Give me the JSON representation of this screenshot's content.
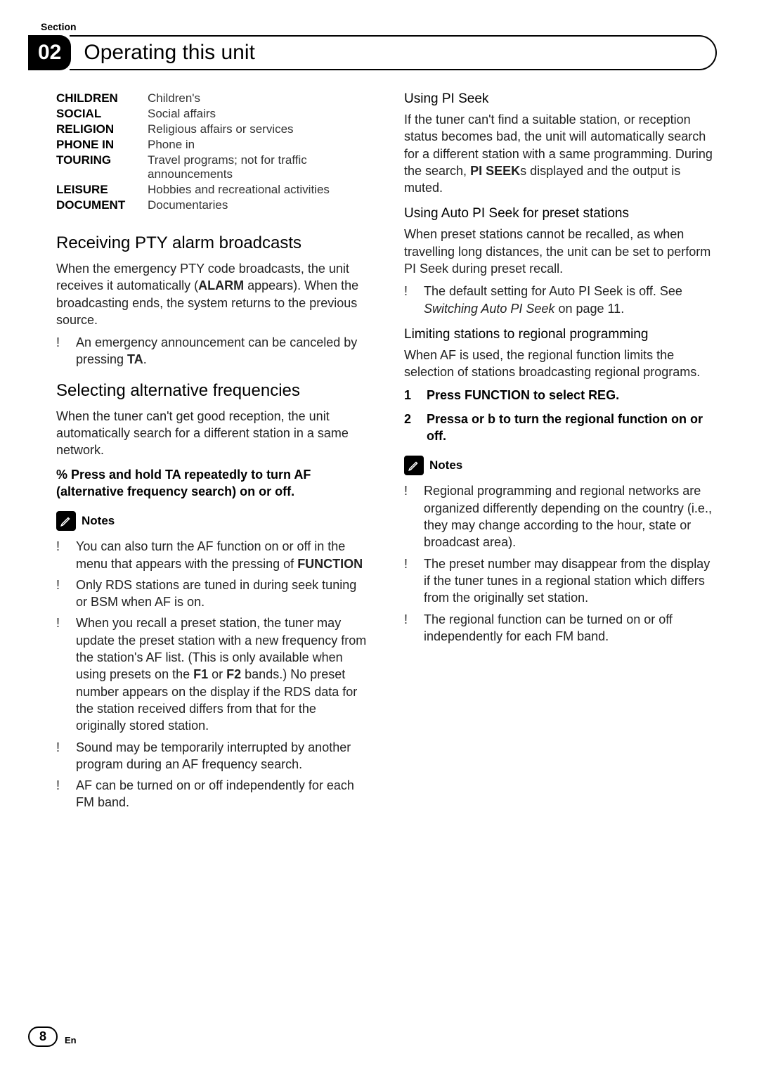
{
  "header": {
    "section_label": "Section",
    "section_number": "02",
    "title": "Operating this unit"
  },
  "pty": [
    {
      "key": "CHILDREN",
      "val": "Children's"
    },
    {
      "key": "SOCIAL",
      "val": "Social affairs"
    },
    {
      "key": "RELIGION",
      "val": "Religious affairs or services"
    },
    {
      "key": "PHONE IN",
      "val": "Phone in"
    },
    {
      "key": "TOURING",
      "val": "Travel programs; not for traffic announcements"
    },
    {
      "key": "LEISURE",
      "val": "Hobbies and recreational activities"
    },
    {
      "key": "DOCUMENT",
      "val": "Documentaries"
    }
  ],
  "left": {
    "h2_pty_alarm": "Receiving PTY alarm broadcasts",
    "pty_alarm_body_pre": "When the emergency PTY code broadcasts, the unit receives it automatically (",
    "pty_alarm_bold": "ALARM",
    "pty_alarm_body_post": " appears). When the broadcasting ends, the system returns to the previous source.",
    "pty_alarm_bullet_pre": "An emergency announcement can be canceled by pressing ",
    "pty_alarm_bullet_bold": "TA",
    "pty_alarm_bullet_post": ".",
    "h2_af": "Selecting alternative frequencies",
    "af_body": "When the tuner can't get good reception, the unit automatically search for a different station in a same network.",
    "af_instruction": "%   Press and hold TA repeatedly to turn AF (alternative frequency search) on or off.",
    "notes_label": "Notes",
    "notes": {
      "n1_pre": "You can also turn the AF function on or off in the menu that appears with the pressing of ",
      "n1_bold": "FUNCTION",
      "n1_post": "",
      "n2": "Only RDS stations are tuned in during seek tuning or BSM when AF is on.",
      "n3_pre": "When you recall a preset station, the tuner may update the preset station with a new frequency from the station's AF list. (This is only available when using presets on the ",
      "n3_b1": "F1",
      "n3_mid": " or ",
      "n3_b2": "F2",
      "n3_post": " bands.) No preset number appears on the display if the RDS data for the station received differs from that for the originally stored station.",
      "n4": "Sound may be temporarily interrupted by another program during an AF frequency search.",
      "n5": "AF can be turned on or off independently for each FM band."
    }
  },
  "right": {
    "h3_pi": "Using PI Seek",
    "pi_body_pre": "If the tuner can't find a suitable station, or reception status becomes bad, the unit will automatically search for a different station with a same programming. During the search, ",
    "pi_bold": "PI SEEK",
    "pi_body_post": "s displayed and the output is muted.",
    "h3_auto_pi": "Using Auto PI Seek for preset stations",
    "auto_pi_body": "When preset stations cannot be recalled, as when travelling long distances, the unit can be set to perform PI Seek during preset recall.",
    "auto_pi_bullet_pre": "The default setting for Auto PI Seek is off. See ",
    "auto_pi_italic": "Switching Auto PI Seek",
    "auto_pi_bullet_post": " on page 11.",
    "h3_regional": "Limiting stations to regional programming",
    "regional_body": "When AF is used, the regional function limits the selection of stations broadcasting regional programs.",
    "step1": "Press FUNCTION to select REG.",
    "step2": "Pressa  or b  to turn the regional function on or off.",
    "notes_label": "Notes",
    "rnotes": {
      "r1": "Regional programming and regional networks are organized differently depending on the country (i.e., they may change according to the hour, state or broadcast area).",
      "r2": "The preset number may disappear from the display if the tuner tunes in a regional station which differs from the originally set station.",
      "r3": "The regional function can be turned on or off independently for each FM band."
    }
  },
  "footer": {
    "page": "8",
    "lang": "En"
  },
  "bullet_char": "!"
}
